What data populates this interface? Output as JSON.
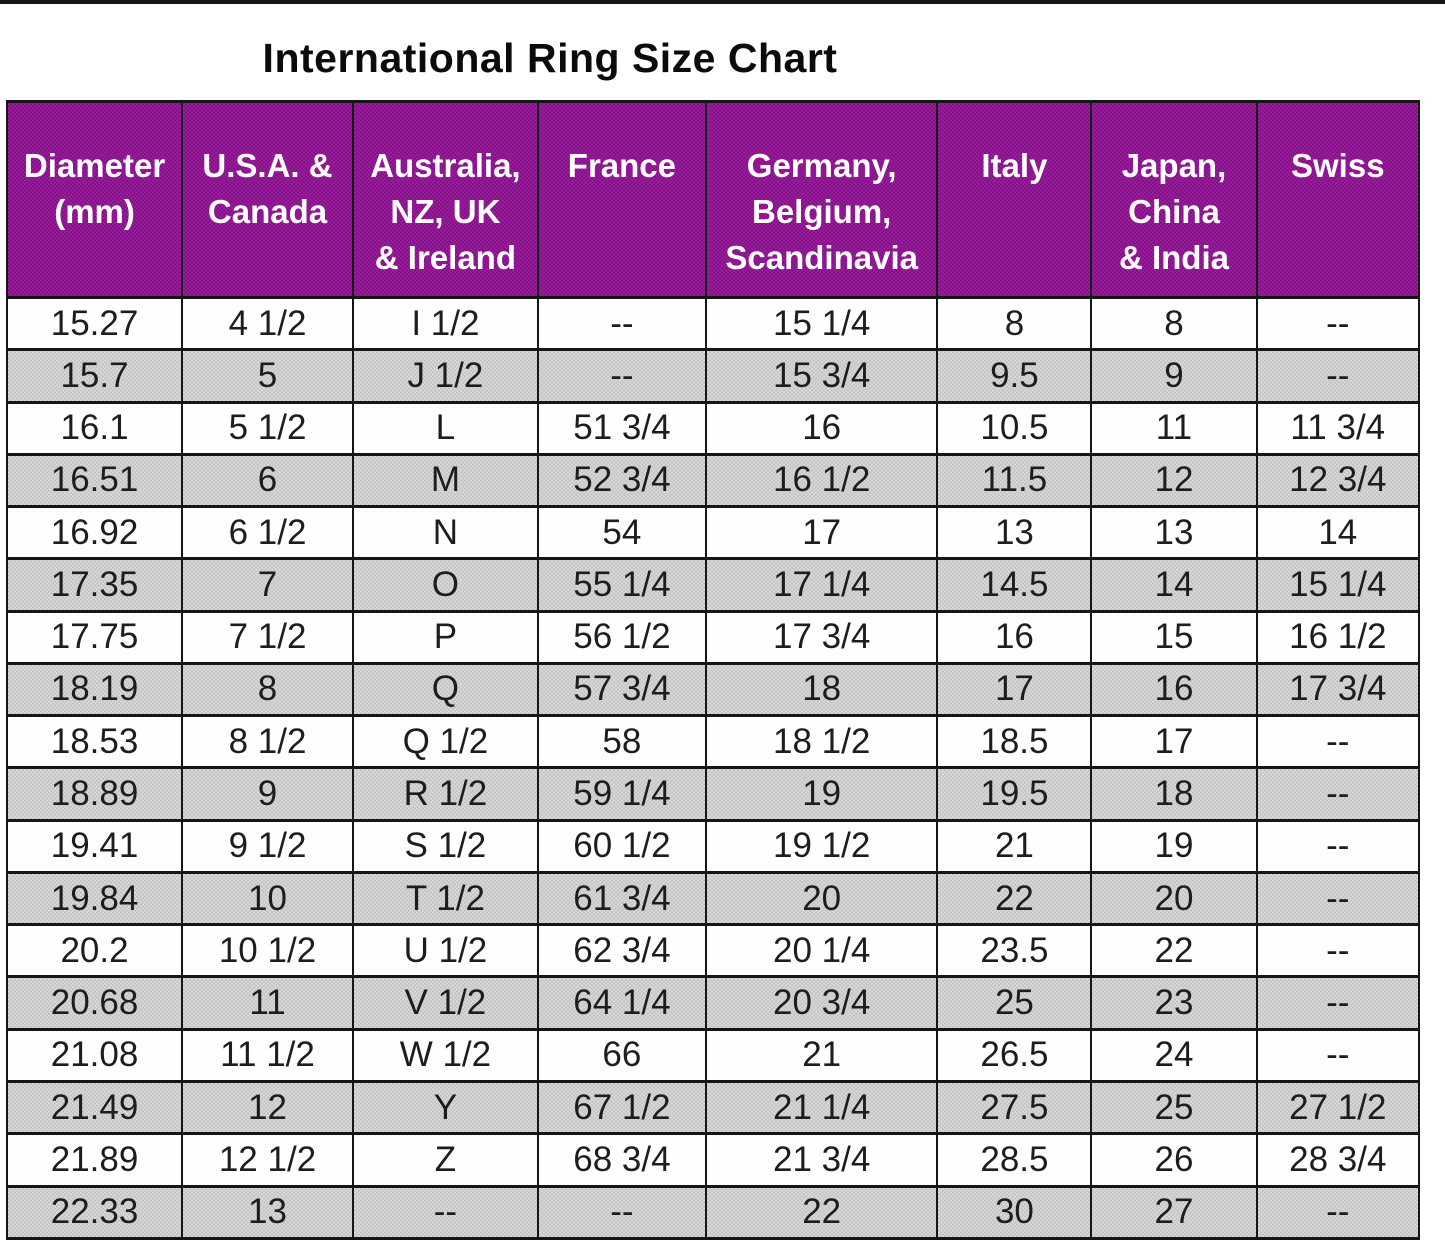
{
  "colors": {
    "header_bg": "#8e1391",
    "header_text": "#ffffff",
    "row_alt": "#cccccc",
    "border": "#161616",
    "text": "#1d1d1d"
  },
  "chart_data": {
    "type": "table",
    "title": "International Ring Size Chart",
    "na_marker": "--",
    "columns": [
      "Diameter\n(mm)",
      "U.S.A. &\nCanada",
      "Australia,\nNZ, UK\n& Ireland",
      "France",
      "Germany,\nBelgium,\nScandinavia",
      "Italy",
      "Japan,\nChina\n& India",
      "Swiss"
    ],
    "rows": [
      [
        "15.27",
        "4 1/2",
        "I 1/2",
        "--",
        "15 1/4",
        "8",
        "8",
        "--"
      ],
      [
        "15.7",
        "5",
        "J 1/2",
        "--",
        "15 3/4",
        "9.5",
        "9",
        "--"
      ],
      [
        "16.1",
        "5 1/2",
        "L",
        "51 3/4",
        "16",
        "10.5",
        "11",
        "11 3/4"
      ],
      [
        "16.51",
        "6",
        "M",
        "52 3/4",
        "16 1/2",
        "11.5",
        "12",
        "12 3/4"
      ],
      [
        "16.92",
        "6 1/2",
        "N",
        "54",
        "17",
        "13",
        "13",
        "14"
      ],
      [
        "17.35",
        "7",
        "O",
        "55 1/4",
        "17 1/4",
        "14.5",
        "14",
        "15 1/4"
      ],
      [
        "17.75",
        "7 1/2",
        "P",
        "56 1/2",
        "17 3/4",
        "16",
        "15",
        "16 1/2"
      ],
      [
        "18.19",
        "8",
        "Q",
        "57 3/4",
        "18",
        "17",
        "16",
        "17 3/4"
      ],
      [
        "18.53",
        "8 1/2",
        "Q 1/2",
        "58",
        "18 1/2",
        "18.5",
        "17",
        "--"
      ],
      [
        "18.89",
        "9",
        "R 1/2",
        "59 1/4",
        "19",
        "19.5",
        "18",
        "--"
      ],
      [
        "19.41",
        "9 1/2",
        "S 1/2",
        "60 1/2",
        "19 1/2",
        "21",
        "19",
        "--"
      ],
      [
        "19.84",
        "10",
        "T 1/2",
        "61 3/4",
        "20",
        "22",
        "20",
        "--"
      ],
      [
        "20.2",
        "10 1/2",
        "U 1/2",
        "62 3/4",
        "20 1/4",
        "23.5",
        "22",
        "--"
      ],
      [
        "20.68",
        "11",
        "V 1/2",
        "64 1/4",
        "20 3/4",
        "25",
        "23",
        "--"
      ],
      [
        "21.08",
        "11 1/2",
        "W 1/2",
        "66",
        "21",
        "26.5",
        "24",
        "--"
      ],
      [
        "21.49",
        "12",
        "Y",
        "67 1/2",
        "21 1/4",
        "27.5",
        "25",
        "27 1/2"
      ],
      [
        "21.89",
        "12 1/2",
        "Z",
        "68 3/4",
        "21 3/4",
        "28.5",
        "26",
        "28 3/4"
      ],
      [
        "22.33",
        "13",
        "--",
        "--",
        "22",
        "30",
        "27",
        "--"
      ]
    ]
  }
}
